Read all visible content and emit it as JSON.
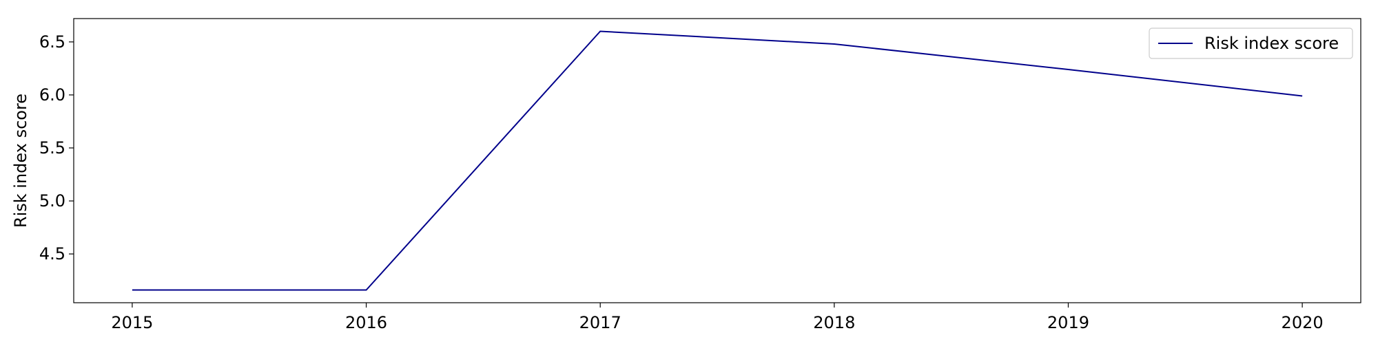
{
  "chart_data": {
    "type": "line",
    "title": "",
    "xlabel": "",
    "ylabel": "Risk index score",
    "x": [
      2015,
      2016,
      2017,
      2018,
      2019,
      2020
    ],
    "series": [
      {
        "name": "Risk index score",
        "color": "#00008b",
        "values": [
          4.16,
          4.16,
          6.6,
          6.48,
          6.24,
          5.99
        ]
      }
    ],
    "xticks": [
      "2015",
      "2016",
      "2017",
      "2018",
      "2019",
      "2020"
    ],
    "yticks": [
      "4.5",
      "5.0",
      "5.5",
      "6.0",
      "6.5"
    ],
    "xlim": [
      2014.75,
      2020.25
    ],
    "ylim": [
      4.04,
      6.72
    ],
    "grid": false,
    "legend_position": "upper right"
  }
}
